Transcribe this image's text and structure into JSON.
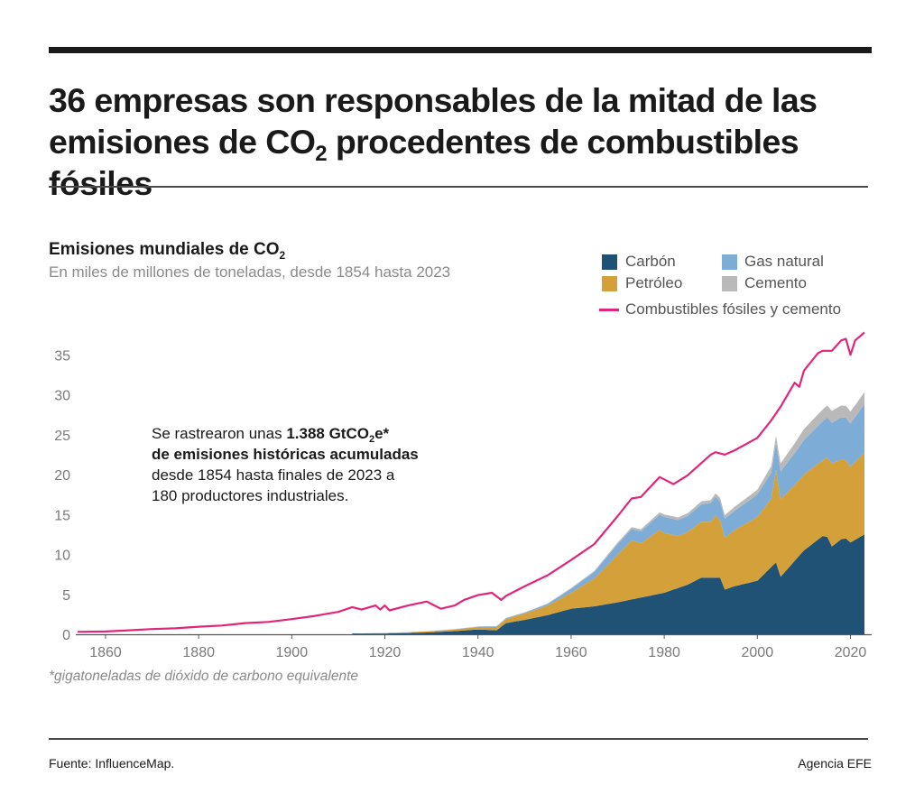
{
  "header": {
    "headline_part1": "36 empresas son responsables de la mitad de las emisiones de CO",
    "headline_sub": "2",
    "headline_part2": " procedentes de combustibles fósiles"
  },
  "chart_header": {
    "title_main": "Emisiones mundiales de CO",
    "title_sub": "2",
    "description": "En miles de millones de toneladas, desde 1854 hasta 2023"
  },
  "legend": {
    "coal": "Carbón",
    "gas": "Gas natural",
    "oil": "Petróleo",
    "cement": "Cemento",
    "total": "Combustibles fósiles y cemento"
  },
  "annotation": {
    "pre": "Se rastrearon unas ",
    "bold1": "1.388 GtCO",
    "bold_sub": "2",
    "bold2": "e*",
    "bold3": "de emisiones históricas acumuladas",
    "rest1": "desde 1854 hasta finales de 2023 a",
    "rest2": "180 productores industriales."
  },
  "footnote": "*gigatoneladas de dióxido de carbono equivalente",
  "footer": {
    "source": "Fuente: InfluenceMap.",
    "credit": "Agencia EFE"
  },
  "colors": {
    "coal": "#1f5275",
    "oil": "#d4a03a",
    "gas": "#7dacd6",
    "cement": "#b9b9b9",
    "total": "#e0267a",
    "axis": "#555555"
  },
  "chart_data": {
    "type": "area",
    "stacked": true,
    "title": "Emisiones mundiales de CO2",
    "subtitle": "En miles de millones de toneladas, desde 1854 hasta 2023",
    "xlim": [
      1854,
      2023
    ],
    "ylim": [
      0,
      37
    ],
    "x_ticks": [
      1860,
      1880,
      1900,
      1920,
      1940,
      1960,
      1980,
      2000,
      2020
    ],
    "y_ticks": [
      0,
      5,
      10,
      15,
      20,
      25,
      30,
      35
    ],
    "grid": false,
    "legend_position": "top-right",
    "stacked_series": [
      {
        "name": "Carbón",
        "color_key": "coal",
        "points": [
          [
            1913,
            0.1
          ],
          [
            1920,
            0.1
          ],
          [
            1925,
            0.15
          ],
          [
            1930,
            0.25
          ],
          [
            1935,
            0.4
          ],
          [
            1940,
            0.6
          ],
          [
            1944,
            0.5
          ],
          [
            1946,
            1.4
          ],
          [
            1950,
            1.8
          ],
          [
            1955,
            2.4
          ],
          [
            1960,
            3.2
          ],
          [
            1965,
            3.5
          ],
          [
            1970,
            4.0
          ],
          [
            1975,
            4.6
          ],
          [
            1980,
            5.2
          ],
          [
            1985,
            6.2
          ],
          [
            1988,
            7.1
          ],
          [
            1992,
            7.1
          ],
          [
            1993,
            5.6
          ],
          [
            1995,
            6.0
          ],
          [
            2000,
            6.7
          ],
          [
            2004,
            9.0
          ],
          [
            2005,
            7.2
          ],
          [
            2010,
            10.5
          ],
          [
            2014,
            12.3
          ],
          [
            2015,
            12.2
          ],
          [
            2016,
            11.0
          ],
          [
            2018,
            11.9
          ],
          [
            2019,
            12.0
          ],
          [
            2020,
            11.5
          ],
          [
            2023,
            12.5
          ]
        ]
      },
      {
        "name": "Petróleo",
        "color_key": "oil",
        "points": [
          [
            1913,
            0.0
          ],
          [
            1920,
            0.05
          ],
          [
            1925,
            0.1
          ],
          [
            1930,
            0.15
          ],
          [
            1935,
            0.2
          ],
          [
            1940,
            0.3
          ],
          [
            1944,
            0.4
          ],
          [
            1946,
            0.5
          ],
          [
            1950,
            0.8
          ],
          [
            1955,
            1.2
          ],
          [
            1960,
            2.0
          ],
          [
            1965,
            3.5
          ],
          [
            1970,
            6.0
          ],
          [
            1973,
            7.4
          ],
          [
            1975,
            6.8
          ],
          [
            1979,
            8.0
          ],
          [
            1980,
            7.5
          ],
          [
            1983,
            6.5
          ],
          [
            1985,
            6.6
          ],
          [
            1988,
            7.0
          ],
          [
            1990,
            7.0
          ],
          [
            1991,
            7.8
          ],
          [
            1992,
            7.2
          ],
          [
            1993,
            6.5
          ],
          [
            1995,
            7.0
          ],
          [
            2000,
            8.0
          ],
          [
            2003,
            8.6
          ],
          [
            2004,
            11.6
          ],
          [
            2005,
            9.7
          ],
          [
            2008,
            9.5
          ],
          [
            2010,
            9.5
          ],
          [
            2014,
            9.5
          ],
          [
            2016,
            10.4
          ],
          [
            2018,
            10.0
          ],
          [
            2019,
            9.8
          ],
          [
            2020,
            9.5
          ],
          [
            2023,
            10.3
          ]
        ]
      },
      {
        "name": "Gas natural",
        "color_key": "gas",
        "points": [
          [
            1913,
            0.0
          ],
          [
            1930,
            0.0
          ],
          [
            1940,
            0.05
          ],
          [
            1946,
            0.1
          ],
          [
            1950,
            0.1
          ],
          [
            1955,
            0.2
          ],
          [
            1960,
            0.5
          ],
          [
            1965,
            0.8
          ],
          [
            1970,
            1.3
          ],
          [
            1975,
            1.5
          ],
          [
            1980,
            2.0
          ],
          [
            1985,
            2.0
          ],
          [
            1990,
            2.3
          ],
          [
            1995,
            2.4
          ],
          [
            2000,
            2.8
          ],
          [
            2005,
            3.5
          ],
          [
            2010,
            4.3
          ],
          [
            2015,
            5.0
          ],
          [
            2020,
            5.4
          ],
          [
            2023,
            6.0
          ]
        ]
      },
      {
        "name": "Cemento",
        "color_key": "cement",
        "points": [
          [
            1913,
            0.0
          ],
          [
            1950,
            0.05
          ],
          [
            1960,
            0.1
          ],
          [
            1970,
            0.2
          ],
          [
            1980,
            0.3
          ],
          [
            1990,
            0.4
          ],
          [
            2000,
            0.6
          ],
          [
            2005,
            1.0
          ],
          [
            2010,
            1.4
          ],
          [
            2015,
            1.5
          ],
          [
            2020,
            1.5
          ],
          [
            2023,
            1.5
          ]
        ]
      }
    ],
    "line_series": {
      "name": "Combustibles fósiles y cemento",
      "color_key": "total",
      "points": [
        [
          1854,
          0.3
        ],
        [
          1860,
          0.35
        ],
        [
          1865,
          0.5
        ],
        [
          1870,
          0.65
        ],
        [
          1875,
          0.75
        ],
        [
          1880,
          0.95
        ],
        [
          1885,
          1.1
        ],
        [
          1890,
          1.4
        ],
        [
          1895,
          1.55
        ],
        [
          1900,
          1.9
        ],
        [
          1905,
          2.3
        ],
        [
          1910,
          2.8
        ],
        [
          1913,
          3.4
        ],
        [
          1915,
          3.1
        ],
        [
          1918,
          3.6
        ],
        [
          1919,
          3.1
        ],
        [
          1920,
          3.6
        ],
        [
          1921,
          3.0
        ],
        [
          1925,
          3.6
        ],
        [
          1929,
          4.1
        ],
        [
          1930,
          3.8
        ],
        [
          1932,
          3.2
        ],
        [
          1935,
          3.6
        ],
        [
          1937,
          4.3
        ],
        [
          1940,
          4.9
        ],
        [
          1943,
          5.2
        ],
        [
          1945,
          4.3
        ],
        [
          1946,
          4.8
        ],
        [
          1950,
          6.0
        ],
        [
          1955,
          7.4
        ],
        [
          1960,
          9.3
        ],
        [
          1965,
          11.3
        ],
        [
          1970,
          14.8
        ],
        [
          1973,
          17.0
        ],
        [
          1975,
          17.2
        ],
        [
          1979,
          19.7
        ],
        [
          1980,
          19.4
        ],
        [
          1982,
          18.8
        ],
        [
          1985,
          19.9
        ],
        [
          1990,
          22.5
        ],
        [
          1991,
          22.8
        ],
        [
          1993,
          22.5
        ],
        [
          1995,
          23.0
        ],
        [
          2000,
          24.6
        ],
        [
          2003,
          26.8
        ],
        [
          2005,
          28.5
        ],
        [
          2008,
          31.5
        ],
        [
          2009,
          31.0
        ],
        [
          2010,
          33.0
        ],
        [
          2013,
          35.2
        ],
        [
          2014,
          35.5
        ],
        [
          2016,
          35.5
        ],
        [
          2018,
          36.8
        ],
        [
          2019,
          37.0
        ],
        [
          2020,
          35.0
        ],
        [
          2021,
          36.8
        ],
        [
          2023,
          37.8
        ]
      ]
    }
  }
}
